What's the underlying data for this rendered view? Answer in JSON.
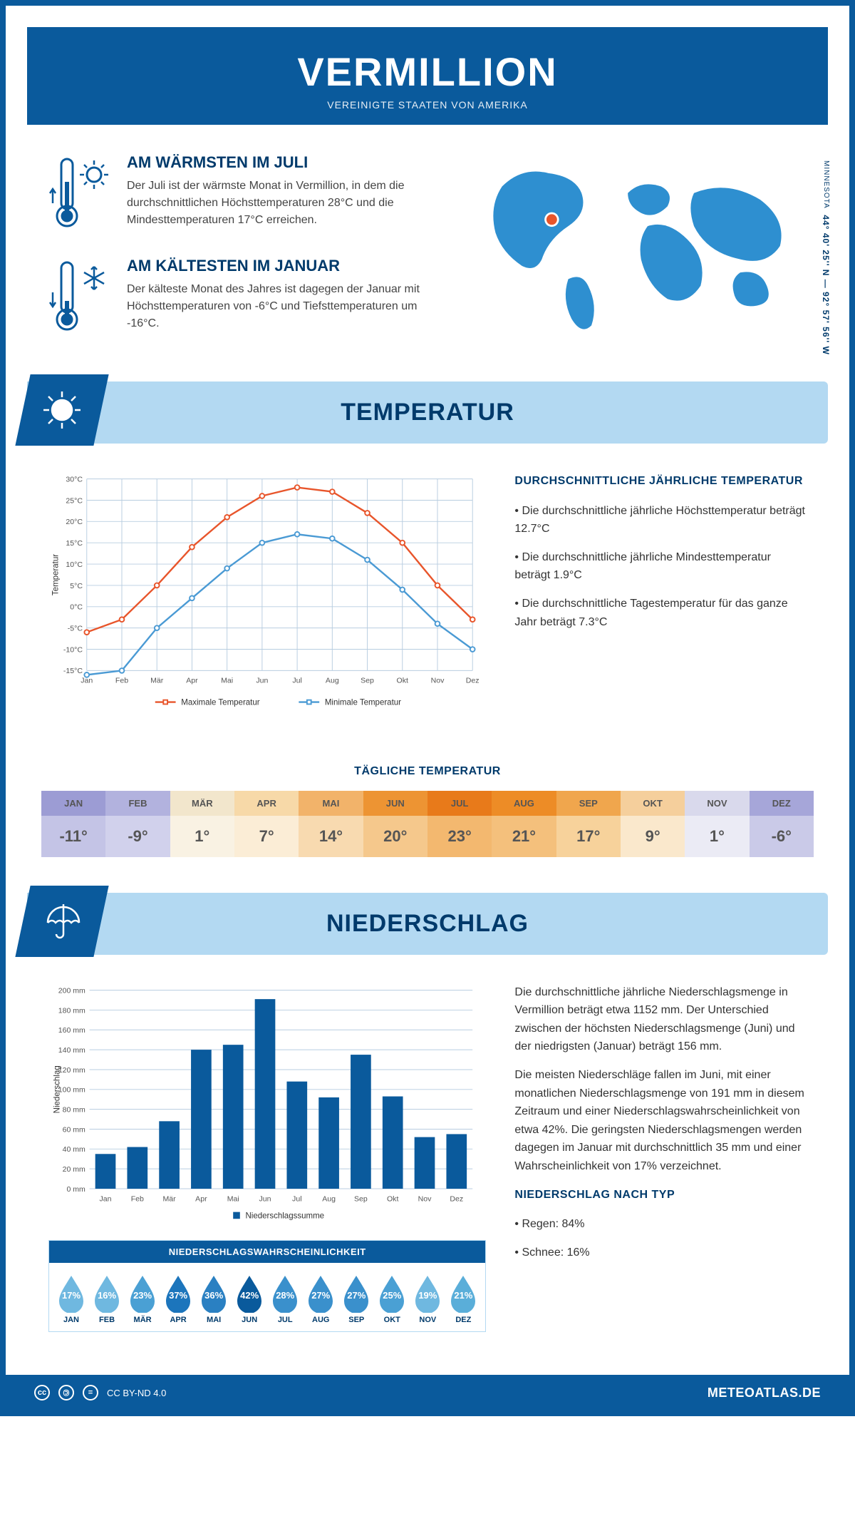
{
  "header": {
    "title": "VERMILLION",
    "subtitle": "VEREINIGTE STAATEN VON AMERIKA"
  },
  "coords": {
    "text": "44° 40' 25'' N — 92° 57' 56'' W",
    "region": "MINNESOTA"
  },
  "facts": {
    "warm": {
      "title": "AM WÄRMSTEN IM JULI",
      "text": "Der Juli ist der wärmste Monat in Vermillion, in dem die durchschnittlichen Höchsttemperaturen 28°C und die Mindesttemperaturen 17°C erreichen."
    },
    "cold": {
      "title": "AM KÄLTESTEN IM JANUAR",
      "text": "Der kälteste Monat des Jahres ist dagegen der Januar mit Höchsttemperaturen von -6°C und Tiefsttemperaturen um -16°C."
    }
  },
  "temp_section": {
    "heading": "TEMPERATUR",
    "side_title": "DURCHSCHNITTLICHE JÄHRLICHE TEMPERATUR",
    "bullets": [
      "• Die durchschnittliche jährliche Höchsttemperatur beträgt 12.7°C",
      "• Die durchschnittliche jährliche Mindesttemperatur beträgt 1.9°C",
      "• Die durchschnittliche Tagestemperatur für das ganze Jahr beträgt 7.3°C"
    ]
  },
  "temp_chart": {
    "months": [
      "Jan",
      "Feb",
      "Mär",
      "Apr",
      "Mai",
      "Jun",
      "Jul",
      "Aug",
      "Sep",
      "Okt",
      "Nov",
      "Dez"
    ],
    "max": [
      -6,
      -3,
      5,
      14,
      21,
      26,
      28,
      27,
      22,
      15,
      5,
      -3
    ],
    "min": [
      -16,
      -15,
      -5,
      2,
      9,
      15,
      17,
      16,
      11,
      4,
      -4,
      -10
    ],
    "ylim": [
      -15,
      30
    ],
    "ytick_step": 5,
    "y_label": "Temperatur",
    "max_color": "#e8552b",
    "min_color": "#4a9ad4",
    "grid_color": "#b8cde0",
    "legend_max": "Maximale Temperatur",
    "legend_min": "Minimale Temperatur"
  },
  "daily": {
    "title": "TÄGLICHE TEMPERATUR",
    "months": [
      "JAN",
      "FEB",
      "MÄR",
      "APR",
      "MAI",
      "JUN",
      "JUL",
      "AUG",
      "SEP",
      "OKT",
      "NOV",
      "DEZ"
    ],
    "values": [
      "-11°",
      "-9°",
      "1°",
      "7°",
      "14°",
      "20°",
      "23°",
      "21°",
      "17°",
      "9°",
      "1°",
      "-6°"
    ],
    "header_bg": [
      "#9c9cd4",
      "#b2b2de",
      "#f2e6cc",
      "#f7d9a8",
      "#f2b36a",
      "#ed9433",
      "#e87a1a",
      "#ed8c26",
      "#f0a64d",
      "#f5cf9c",
      "#d9d9ec",
      "#a6a6d9"
    ],
    "value_bg": [
      "#c4c4e6",
      "#d1d1ec",
      "#f9f2e3",
      "#fbedd6",
      "#f8dab0",
      "#f5c88c",
      "#f3b86f",
      "#f4c07c",
      "#f7d29b",
      "#fae8cc",
      "#ebebf5",
      "#cacae8"
    ],
    "text_color": "#555"
  },
  "precip_section": {
    "heading": "NIEDERSCHLAG",
    "para1": "Die durchschnittliche jährliche Niederschlagsmenge in Vermillion beträgt etwa 1152 mm. Der Unterschied zwischen der höchsten Niederschlagsmenge (Juni) und der niedrigsten (Januar) beträgt 156 mm.",
    "para2": "Die meisten Niederschläge fallen im Juni, mit einer monatlichen Niederschlagsmenge von 191 mm in diesem Zeitraum und einer Niederschlagswahrscheinlichkeit von etwa 42%. Die geringsten Niederschlagsmengen werden dagegen im Januar mit durchschnittlich 35 mm und einer Wahrscheinlichkeit von 17% verzeichnet.",
    "type_title": "NIEDERSCHLAG NACH TYP",
    "type_rain": "• Regen: 84%",
    "type_snow": "• Schnee: 16%"
  },
  "precip_chart": {
    "months": [
      "Jan",
      "Feb",
      "Mär",
      "Apr",
      "Mai",
      "Jun",
      "Jul",
      "Aug",
      "Sep",
      "Okt",
      "Nov",
      "Dez"
    ],
    "values": [
      35,
      42,
      68,
      140,
      145,
      191,
      108,
      92,
      135,
      93,
      52,
      55
    ],
    "ylim": [
      0,
      200
    ],
    "ytick_step": 20,
    "y_label": "Niederschlag",
    "legend": "Niederschlagssumme",
    "bar_color": "#0a5a9c",
    "grid_color": "#b8cde0"
  },
  "prob": {
    "title": "NIEDERSCHLAGSWAHRSCHEINLICHKEIT",
    "months": [
      "JAN",
      "FEB",
      "MÄR",
      "APR",
      "MAI",
      "JUN",
      "JUL",
      "AUG",
      "SEP",
      "OKT",
      "NOV",
      "DEZ"
    ],
    "pct": [
      "17%",
      "16%",
      "23%",
      "37%",
      "36%",
      "42%",
      "28%",
      "27%",
      "27%",
      "25%",
      "19%",
      "21%"
    ],
    "colors": [
      "#6fb8e0",
      "#6fb8e0",
      "#4aa0d4",
      "#1c75bc",
      "#2a80c2",
      "#0a5a9c",
      "#3a90cc",
      "#3a90cc",
      "#3a90cc",
      "#4aa0d4",
      "#6fb8e0",
      "#5aaed9"
    ]
  },
  "footer": {
    "license": "CC BY-ND 4.0",
    "site": "METEOATLAS.DE"
  }
}
